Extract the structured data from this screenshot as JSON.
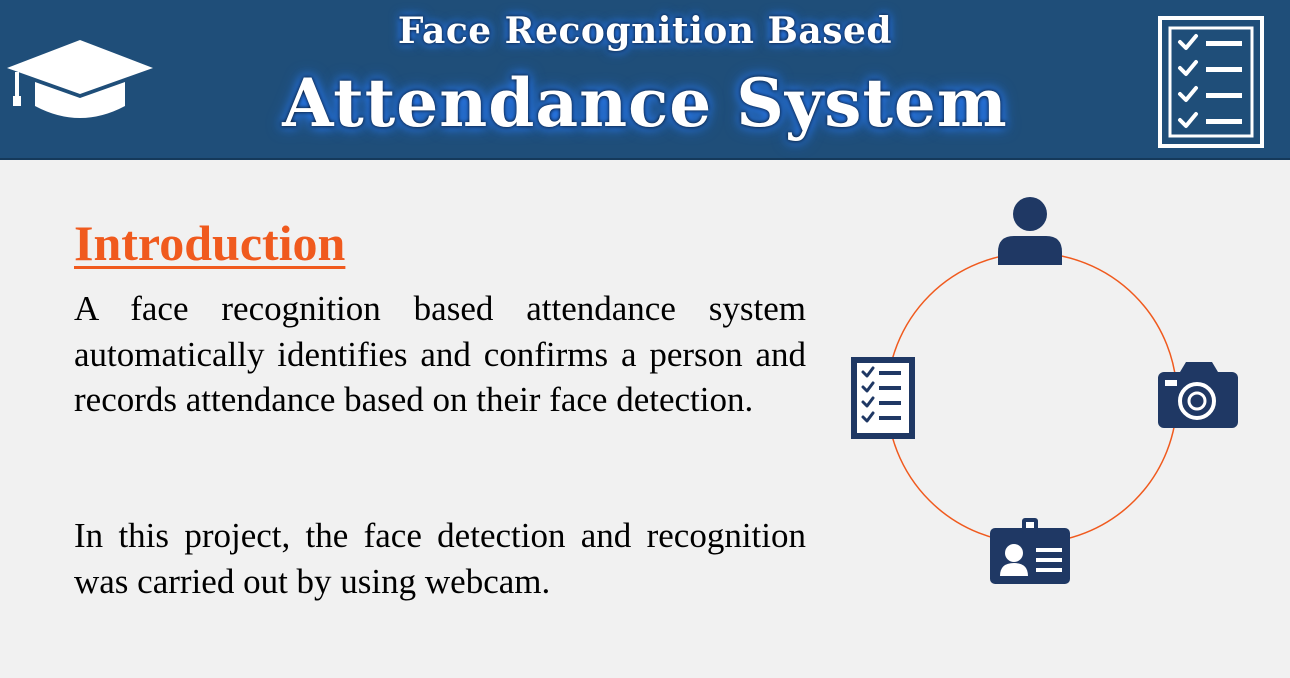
{
  "header": {
    "subtitle": "Face Recognition Based",
    "title": "Attendance System",
    "background_color": "#1f4e79",
    "left_icon": "graduation-cap-icon",
    "right_icon": "checklist-icon"
  },
  "content": {
    "heading": "Introduction",
    "heading_color": "#f05a1e",
    "paragraphs": [
      "A face recognition based attendance system automatically identifies and confirms a person and records attendance based on their face detection.",
      "In this project, the face detection and recognition was carried out by using webcam."
    ]
  },
  "cycle_diagram": {
    "ring_color": "#f05a1e",
    "icon_color": "#1f3864",
    "icons": [
      "person-icon",
      "camera-icon",
      "id-card-icon",
      "checklist-icon"
    ]
  }
}
